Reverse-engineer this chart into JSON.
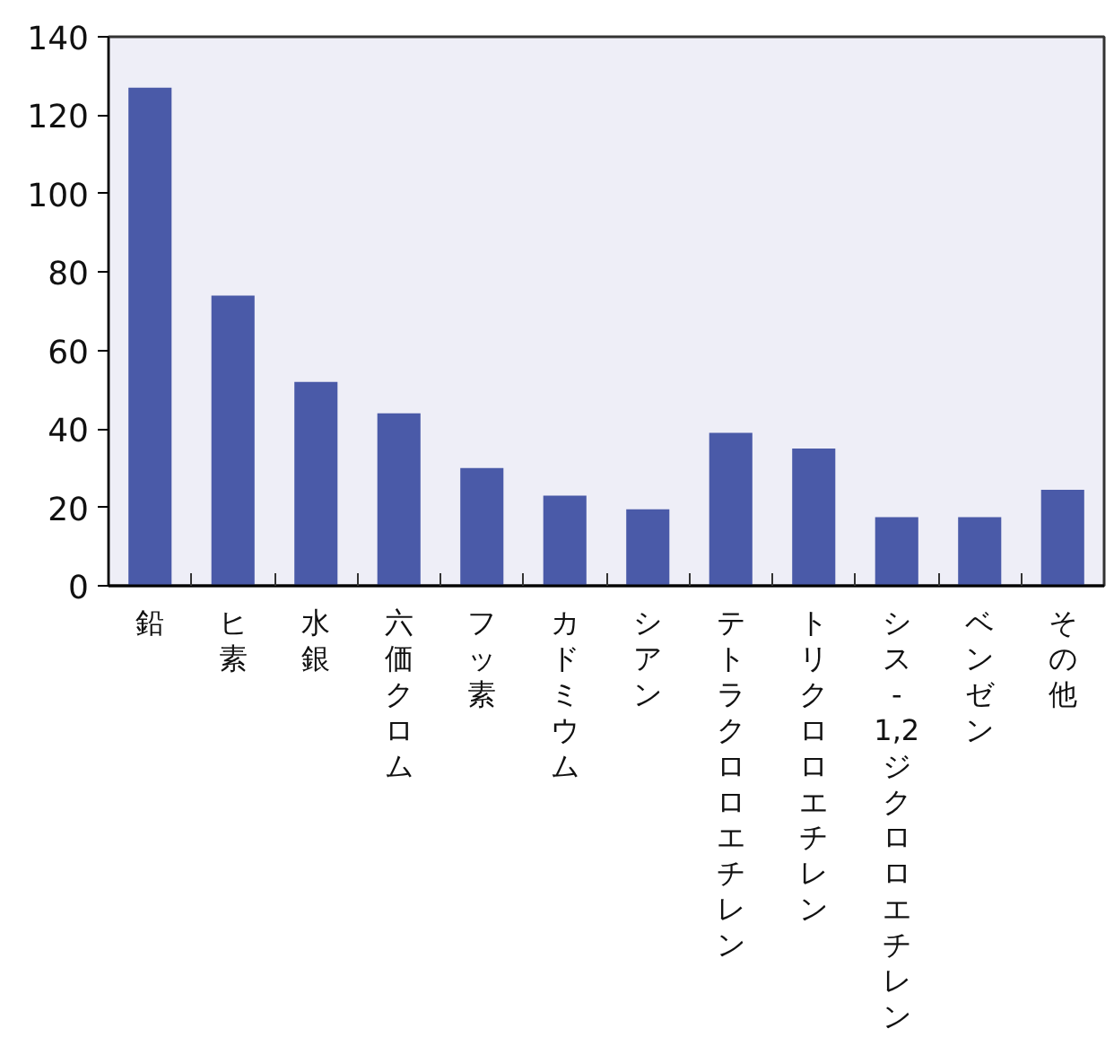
{
  "chart_data": {
    "type": "bar",
    "categories": [
      "鉛",
      "ヒ素",
      "水銀",
      "六価クロム",
      "フッ素",
      "カドミウム",
      "シアン",
      "テトラクロロエチレン",
      "トリクロロエチレン",
      "シス-1,2ジクロロエチレン",
      "ベンゼン",
      "その他"
    ],
    "values": [
      127,
      74,
      52,
      44,
      30,
      23,
      19.5,
      39,
      35,
      17.5,
      17.5,
      24.5
    ],
    "color": "#4a5aa8",
    "ylim": [
      0,
      140
    ],
    "yticks": [
      0,
      20,
      40,
      60,
      80,
      100,
      120,
      140
    ],
    "grid": false
  }
}
